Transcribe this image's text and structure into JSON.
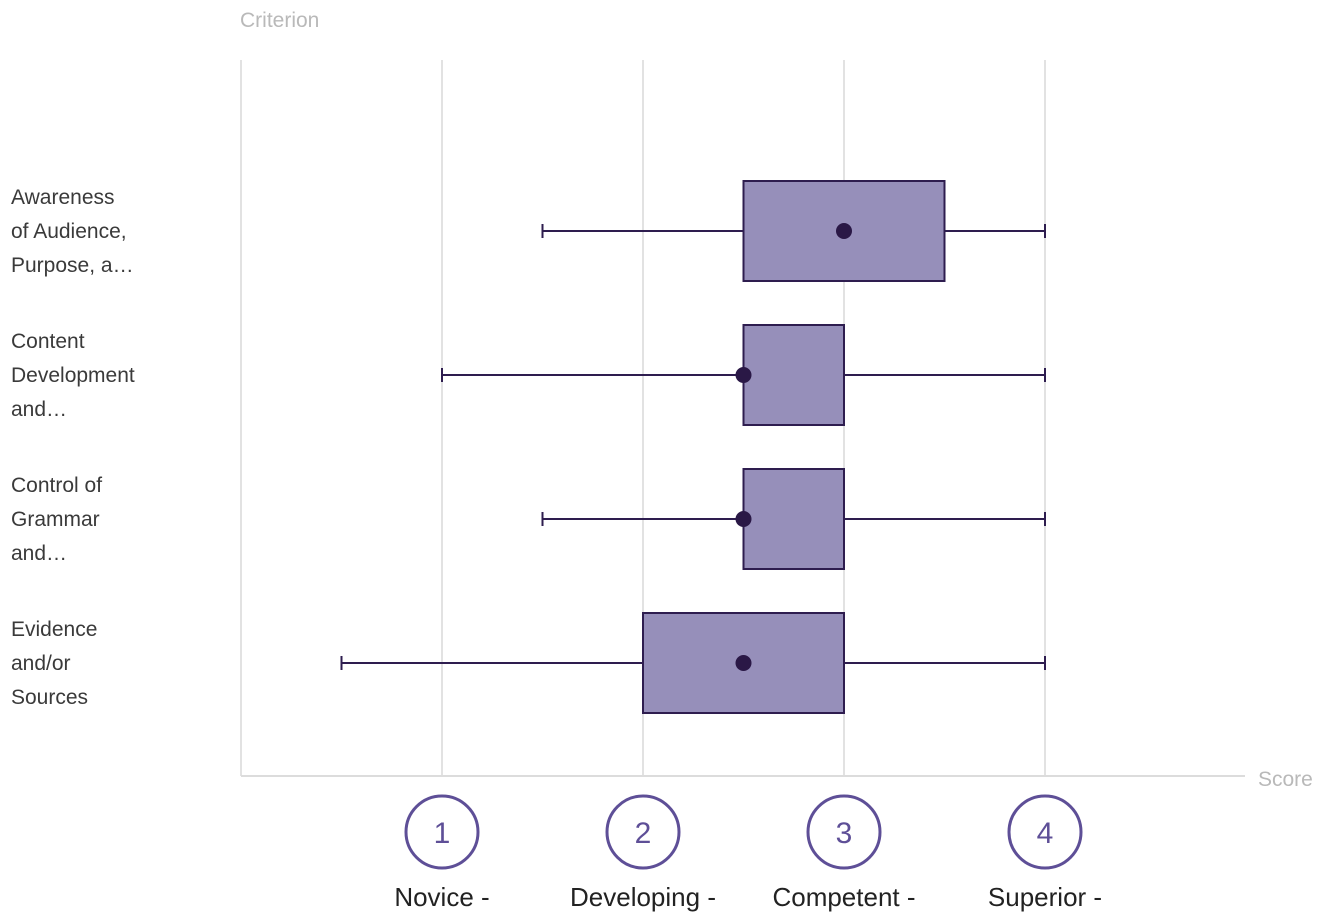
{
  "chart_data": {
    "type": "boxplot",
    "orientation": "horizontal",
    "y_axis_title": "Criterion",
    "x_axis_title": "Score",
    "xlim": [
      0,
      5
    ],
    "grid": true,
    "ticks": [
      {
        "value": 1,
        "number": "1",
        "label": "Novice -"
      },
      {
        "value": 2,
        "number": "2",
        "label": "Developing -"
      },
      {
        "value": 3,
        "number": "3",
        "label": "Competent -"
      },
      {
        "value": 4,
        "number": "4",
        "label": "Superior -"
      }
    ],
    "categories": [
      {
        "label_lines": [
          "Awareness",
          "of Audience,",
          "Purpose, a…"
        ],
        "min": 1.5,
        "q1": 2.5,
        "median": 3.0,
        "q3": 3.5,
        "max": 4.0
      },
      {
        "label_lines": [
          "Content",
          "Development",
          "and…"
        ],
        "min": 1.0,
        "q1": 2.5,
        "median": 2.5,
        "q3": 3.0,
        "max": 4.0
      },
      {
        "label_lines": [
          "Control of",
          "Grammar",
          "and…"
        ],
        "min": 1.5,
        "q1": 2.5,
        "median": 2.5,
        "q3": 3.0,
        "max": 4.0
      },
      {
        "label_lines": [
          "Evidence",
          "and/or",
          "Sources"
        ],
        "min": 0.5,
        "q1": 2.0,
        "median": 2.5,
        "q3": 3.0,
        "max": 4.0
      }
    ],
    "colors": {
      "box_fill": "#968fba",
      "box_stroke": "#2e1d4f",
      "median_dot": "#2a1846",
      "grid": "#e2e2e2",
      "axis": "#dcdcdc",
      "tick_circle": "#5e4f97",
      "axis_title": "#b9b9b9",
      "label_text": "#3a3a3a"
    }
  }
}
